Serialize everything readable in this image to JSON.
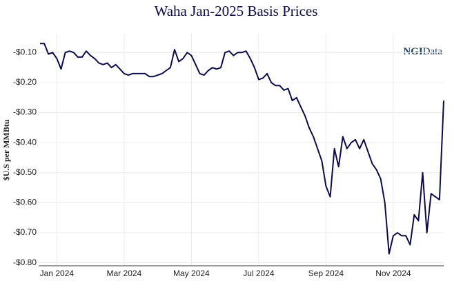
{
  "chart_data": {
    "type": "line",
    "title": "Waha Jan-2025 Basis Prices",
    "y_label": "$U.S per MMBtu",
    "logo": {
      "bold": "NGI",
      "rest": "Data"
    },
    "categories": [
      null,
      null,
      null,
      null,
      "Jan 2024",
      null,
      null,
      null,
      null,
      null,
      null,
      null,
      null,
      null,
      null,
      null,
      null,
      null,
      null,
      null,
      "Mar 2024",
      null,
      null,
      null,
      null,
      null,
      null,
      null,
      null,
      null,
      null,
      null,
      null,
      null,
      null,
      null,
      "May 2024",
      null,
      null,
      null,
      null,
      null,
      null,
      null,
      null,
      null,
      null,
      null,
      null,
      null,
      null,
      null,
      "Jul 2024",
      null,
      null,
      null,
      null,
      null,
      null,
      null,
      null,
      null,
      null,
      null,
      null,
      null,
      null,
      null,
      "Sep 2024",
      null,
      null,
      null,
      null,
      null,
      null,
      null,
      null,
      null,
      null,
      null,
      null,
      null,
      null,
      null,
      "Nov 2024",
      null,
      null,
      null,
      null,
      null,
      null,
      null,
      null,
      null,
      null,
      null,
      null
    ],
    "series": [
      {
        "name": "Waha Jan-2025",
        "color": "#0b0b4a",
        "values": [
          -0.07,
          -0.07,
          -0.105,
          -0.1,
          -0.12,
          -0.155,
          -0.1,
          -0.095,
          -0.1,
          -0.115,
          -0.115,
          -0.095,
          -0.11,
          -0.12,
          -0.135,
          -0.14,
          -0.135,
          -0.15,
          -0.14,
          -0.155,
          -0.17,
          -0.175,
          -0.17,
          -0.17,
          -0.17,
          -0.17,
          -0.18,
          -0.18,
          -0.175,
          -0.17,
          -0.16,
          -0.15,
          -0.09,
          -0.13,
          -0.12,
          -0.1,
          -0.11,
          -0.14,
          -0.17,
          -0.175,
          -0.16,
          -0.15,
          -0.155,
          -0.15,
          -0.1,
          -0.095,
          -0.11,
          -0.1,
          -0.1,
          -0.095,
          -0.12,
          -0.15,
          -0.19,
          -0.185,
          -0.17,
          -0.2,
          -0.21,
          -0.21,
          -0.225,
          -0.22,
          -0.26,
          -0.25,
          -0.28,
          -0.31,
          -0.35,
          -0.38,
          -0.42,
          -0.46,
          -0.545,
          -0.58,
          -0.42,
          -0.48,
          -0.38,
          -0.42,
          -0.4,
          -0.39,
          -0.42,
          -0.39,
          -0.43,
          -0.47,
          -0.49,
          -0.52,
          -0.6,
          -0.77,
          -0.71,
          -0.7,
          -0.71,
          -0.71,
          -0.74,
          -0.64,
          -0.66,
          -0.5,
          -0.7,
          -0.57,
          -0.58,
          -0.59,
          -0.26
        ]
      }
    ],
    "ylim": [
      -0.81,
      -0.035
    ],
    "yticks": [
      {
        "value": -0.1,
        "label": "-$0.10"
      },
      {
        "value": -0.2,
        "label": "-$0.20"
      },
      {
        "value": -0.3,
        "label": "-$0.30"
      },
      {
        "value": -0.4,
        "label": "-$0.40"
      },
      {
        "value": -0.5,
        "label": "-$0.50"
      },
      {
        "value": -0.6,
        "label": "-$0.60"
      },
      {
        "value": -0.7,
        "label": "-$0.70"
      },
      {
        "value": -0.8,
        "label": "-$0.80"
      }
    ],
    "grid": true
  }
}
